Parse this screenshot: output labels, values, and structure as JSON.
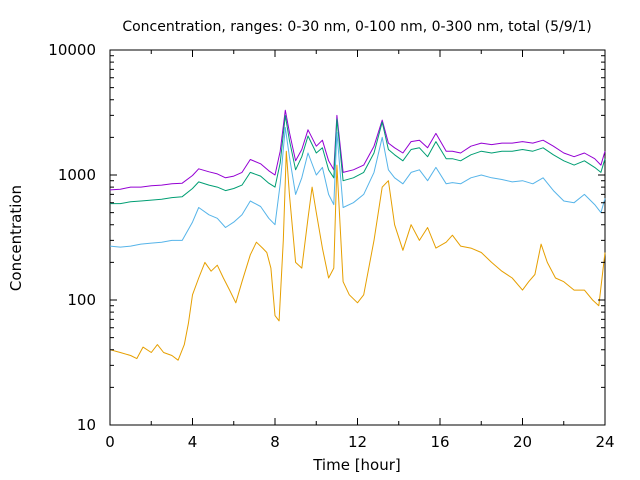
{
  "chart_data": {
    "type": "line",
    "title": "Concentration, ranges: 0-30 nm, 0-100 nm, 0-300 nm, total (5/9/1)",
    "xlabel": "Time [hour]",
    "ylabel": "Concentration",
    "xlim": [
      0,
      24
    ],
    "ylim": [
      10,
      10000
    ],
    "yscale": "log",
    "grid": false,
    "legend": "none",
    "x_ticks": [
      "0",
      "4",
      "8",
      "12",
      "16",
      "20",
      "24"
    ],
    "y_ticks": [
      "10",
      "100",
      "1000",
      "10000"
    ],
    "series": [
      {
        "color": "#9400d3",
        "x": [
          0,
          0.5,
          1,
          1.5,
          2,
          2.5,
          3,
          3.5,
          4,
          4.3,
          4.8,
          5.2,
          5.6,
          6,
          6.4,
          6.8,
          7.3,
          7.7,
          8,
          8.25,
          8.5,
          8.7,
          9,
          9.3,
          9.6,
          10,
          10.3,
          10.6,
          10.85,
          11,
          11.3,
          11.8,
          12.3,
          12.8,
          13.2,
          13.5,
          13.8,
          14.2,
          14.6,
          15,
          15.4,
          15.8,
          16.3,
          16.6,
          17,
          17.5,
          18,
          18.5,
          19,
          19.5,
          20,
          20.5,
          21,
          21.5,
          22,
          22.5,
          23,
          23.5,
          23.8,
          24
        ],
        "y": [
          760,
          770,
          800,
          800,
          820,
          830,
          850,
          860,
          990,
          1120,
          1060,
          1020,
          950,
          980,
          1050,
          1330,
          1230,
          1080,
          1000,
          1550,
          3300,
          2200,
          1300,
          1600,
          2300,
          1700,
          1900,
          1300,
          1100,
          3000,
          1050,
          1100,
          1200,
          1700,
          2750,
          1800,
          1650,
          1500,
          1850,
          1900,
          1650,
          2150,
          1550,
          1550,
          1500,
          1700,
          1800,
          1750,
          1800,
          1800,
          1850,
          1800,
          1900,
          1700,
          1500,
          1400,
          1500,
          1350,
          1200,
          1550
        ]
      },
      {
        "color": "#009e73",
        "x": [
          0,
          0.5,
          1,
          1.5,
          2,
          2.5,
          3,
          3.5,
          4,
          4.3,
          4.8,
          5.2,
          5.6,
          6,
          6.4,
          6.8,
          7.3,
          7.7,
          8,
          8.25,
          8.5,
          8.7,
          9,
          9.3,
          9.6,
          10,
          10.3,
          10.6,
          10.85,
          11,
          11.3,
          11.8,
          12.3,
          12.8,
          13.2,
          13.5,
          13.8,
          14.2,
          14.6,
          15,
          15.4,
          15.8,
          16.3,
          16.6,
          17,
          17.5,
          18,
          18.5,
          19,
          19.5,
          20,
          20.5,
          21,
          21.5,
          22,
          22.5,
          23,
          23.5,
          23.8,
          24
        ],
        "y": [
          590,
          590,
          610,
          620,
          630,
          640,
          660,
          670,
          780,
          880,
          830,
          800,
          750,
          780,
          830,
          1050,
          980,
          860,
          800,
          1250,
          3000,
          1900,
          1100,
          1400,
          2050,
          1500,
          1650,
          1100,
          950,
          2800,
          900,
          950,
          1050,
          1500,
          2650,
          1600,
          1450,
          1300,
          1600,
          1650,
          1400,
          1850,
          1350,
          1350,
          1300,
          1450,
          1550,
          1500,
          1550,
          1550,
          1600,
          1550,
          1650,
          1450,
          1300,
          1200,
          1300,
          1150,
          1050,
          1350
        ]
      },
      {
        "color": "#56b4e9",
        "x": [
          0,
          0.5,
          1,
          1.5,
          2,
          2.5,
          3,
          3.5,
          4,
          4.3,
          4.8,
          5.2,
          5.6,
          6,
          6.4,
          6.8,
          7.3,
          7.7,
          8,
          8.25,
          8.5,
          8.7,
          9,
          9.3,
          9.6,
          10,
          10.3,
          10.6,
          10.85,
          11,
          11.3,
          11.8,
          12.3,
          12.8,
          13.2,
          13.5,
          13.8,
          14.2,
          14.6,
          15,
          15.4,
          15.8,
          16.3,
          16.6,
          17,
          17.5,
          18,
          18.5,
          19,
          19.5,
          20,
          20.5,
          21,
          21.5,
          22,
          22.5,
          23,
          23.5,
          23.8,
          24
        ],
        "y": [
          270,
          265,
          270,
          280,
          285,
          290,
          300,
          300,
          420,
          550,
          480,
          450,
          380,
          420,
          480,
          620,
          560,
          450,
          400,
          850,
          2400,
          1400,
          700,
          950,
          1500,
          1000,
          1150,
          700,
          580,
          2200,
          550,
          600,
          700,
          1050,
          2000,
          1100,
          950,
          850,
          1050,
          1100,
          900,
          1150,
          850,
          870,
          850,
          950,
          1000,
          950,
          920,
          880,
          900,
          850,
          950,
          750,
          620,
          600,
          700,
          580,
          500,
          650
        ]
      },
      {
        "color": "#e69f00",
        "x": [
          0,
          0.5,
          1,
          1.3,
          1.6,
          2,
          2.3,
          2.6,
          3,
          3.3,
          3.6,
          3.8,
          4,
          4.3,
          4.6,
          4.9,
          5.2,
          5.5,
          5.8,
          6.1,
          6.4,
          6.8,
          7.1,
          7.4,
          7.6,
          7.8,
          8,
          8.2,
          8.4,
          8.55,
          8.7,
          9,
          9.3,
          9.6,
          9.8,
          10,
          10.3,
          10.6,
          10.85,
          11,
          11.3,
          11.6,
          12,
          12.3,
          12.8,
          13.2,
          13.5,
          13.8,
          14.2,
          14.6,
          15,
          15.4,
          15.8,
          16.3,
          16.6,
          17,
          17.5,
          18,
          18.5,
          19,
          19.5,
          20,
          20.3,
          20.6,
          20.9,
          21.2,
          21.6,
          22,
          22.5,
          23,
          23.4,
          23.7,
          24
        ],
        "y": [
          40,
          38,
          36,
          34,
          42,
          38,
          44,
          38,
          36,
          33,
          44,
          65,
          110,
          150,
          200,
          170,
          190,
          150,
          120,
          95,
          140,
          230,
          290,
          260,
          240,
          180,
          75,
          68,
          300,
          1550,
          700,
          200,
          180,
          450,
          800,
          500,
          260,
          150,
          180,
          1200,
          140,
          110,
          95,
          110,
          300,
          800,
          900,
          400,
          250,
          400,
          300,
          380,
          260,
          290,
          330,
          270,
          260,
          240,
          200,
          170,
          150,
          120,
          140,
          160,
          280,
          200,
          150,
          140,
          120,
          120,
          100,
          90,
          240
        ]
      }
    ]
  }
}
